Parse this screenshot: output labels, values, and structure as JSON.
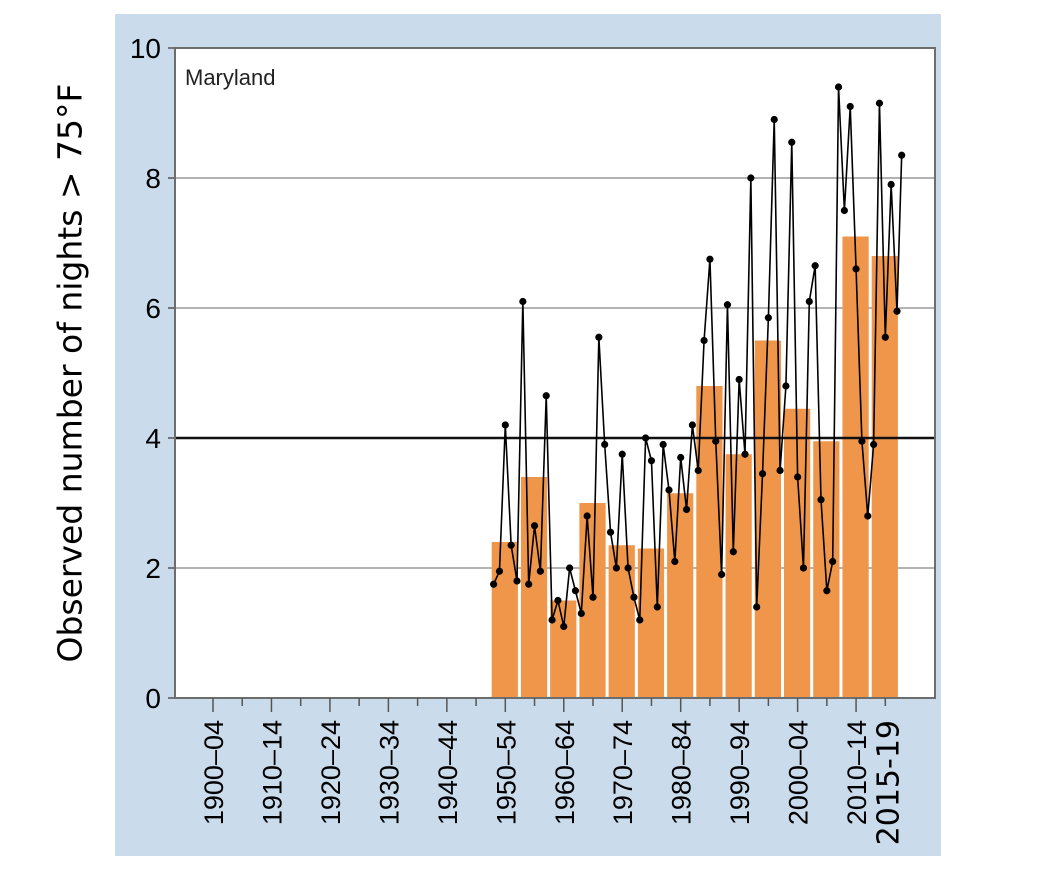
{
  "chart_data": {
    "type": "bar",
    "region_label": "Maryland",
    "ylabel": "Observed number of nights > 75°F",
    "ylim": [
      0,
      10
    ],
    "yticks": [
      0,
      2,
      4,
      6,
      8,
      10
    ],
    "xlim": [
      1896,
      2026
    ],
    "grid": "horizontal",
    "reference_line": 4,
    "tick_labels": [
      "1900–04",
      "1910–14",
      "1920–24",
      "1930–34",
      "1940–44",
      "1950–54",
      "1960–64",
      "1970–74",
      "1980–84",
      "1990–94",
      "2000–04",
      "2010–14",
      "2015-19"
    ],
    "bars": {
      "categories": [
        "1950–54",
        "1955–59",
        "1960–64",
        "1965–69",
        "1970–74",
        "1975–79",
        "1980–84",
        "1985–89",
        "1990–94",
        "1995–99",
        "2000–04",
        "2005–09",
        "2010–14",
        "2015–19"
      ],
      "start_years": [
        1950,
        1955,
        1960,
        1965,
        1970,
        1975,
        1980,
        1985,
        1990,
        1995,
        2000,
        2005,
        2010,
        2015
      ],
      "values": [
        2.4,
        3.4,
        1.5,
        3.0,
        2.35,
        2.3,
        3.15,
        4.8,
        3.75,
        5.5,
        4.45,
        3.95,
        7.1,
        6.8
      ]
    },
    "annual": {
      "x": [
        1950,
        1951,
        1952,
        1953,
        1954,
        1955,
        1956,
        1957,
        1958,
        1959,
        1960,
        1961,
        1962,
        1963,
        1964,
        1965,
        1966,
        1967,
        1968,
        1969,
        1970,
        1971,
        1972,
        1973,
        1974,
        1975,
        1976,
        1977,
        1978,
        1979,
        1980,
        1981,
        1982,
        1983,
        1984,
        1985,
        1986,
        1987,
        1988,
        1989,
        1990,
        1991,
        1992,
        1993,
        1994,
        1995,
        1996,
        1997,
        1998,
        1999,
        2000,
        2001,
        2002,
        2003,
        2004,
        2005,
        2006,
        2007,
        2008,
        2009,
        2010,
        2011,
        2012,
        2013,
        2014,
        2015,
        2016,
        2017,
        2018,
        2019
      ],
      "y": [
        1.75,
        1.95,
        4.2,
        2.35,
        1.8,
        6.1,
        1.75,
        2.65,
        1.95,
        4.65,
        1.2,
        1.5,
        1.1,
        2.0,
        1.65,
        1.3,
        2.8,
        1.55,
        5.55,
        3.9,
        2.55,
        2.0,
        3.75,
        2.0,
        1.55,
        1.2,
        4.0,
        3.65,
        1.4,
        3.9,
        3.2,
        2.1,
        3.7,
        2.9,
        4.2,
        3.5,
        5.5,
        6.75,
        3.95,
        1.9,
        6.05,
        2.25,
        4.9,
        3.75,
        8.0,
        1.4,
        3.45,
        5.85,
        8.9,
        3.5,
        4.8,
        8.55,
        3.4,
        2.0,
        6.1,
        6.65,
        3.05,
        1.65,
        2.1,
        9.4,
        7.5,
        9.1,
        6.6,
        3.95,
        2.8,
        3.9,
        9.15,
        5.55,
        7.9,
        5.95
      ],
      "extra_last": 8.35
    },
    "colors": {
      "bar": "#f0964a",
      "line": "#000000",
      "background": "#cadcec",
      "plot": "#ffffff",
      "grid": "#9a9a9a"
    }
  }
}
